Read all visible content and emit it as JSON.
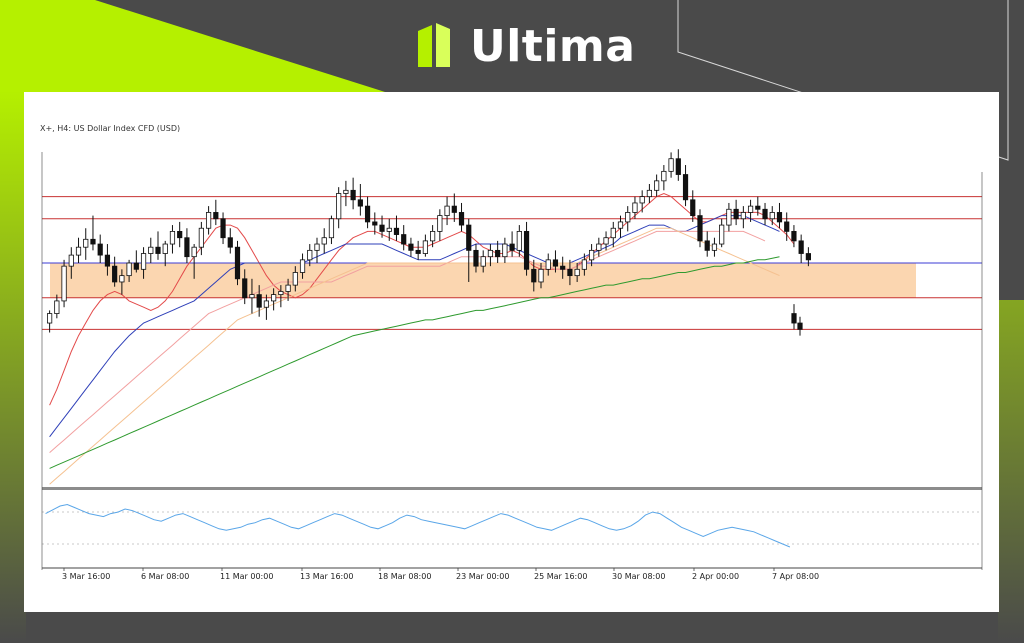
{
  "brand": {
    "name": "Ultima",
    "accent_color": "#b5f000",
    "background_color": "#4a4a4a"
  },
  "chart_data": {
    "type": "candlestick",
    "title": "X+, H4:  US Dollar Index CFD (USD)",
    "x_tick_labels": [
      "3 Mar 16:00",
      "6 Mar 08:00",
      "11 Mar 00:00",
      "13 Mar 16:00",
      "18 Mar 08:00",
      "23 Mar 00:00",
      "25 Mar 16:00",
      "30 Mar 08:00",
      "2 Apr 00:00",
      "7 Apr 08:00"
    ],
    "ylim": [
      0,
      100
    ],
    "candles": [
      {
        "o": 12,
        "h": 20,
        "l": 6,
        "c": 18
      },
      {
        "o": 18,
        "h": 30,
        "l": 15,
        "c": 26
      },
      {
        "o": 26,
        "h": 52,
        "l": 22,
        "c": 48
      },
      {
        "o": 48,
        "h": 60,
        "l": 40,
        "c": 55
      },
      {
        "o": 55,
        "h": 66,
        "l": 50,
        "c": 60
      },
      {
        "o": 60,
        "h": 72,
        "l": 52,
        "c": 65
      },
      {
        "o": 65,
        "h": 80,
        "l": 58,
        "c": 62
      },
      {
        "o": 62,
        "h": 68,
        "l": 50,
        "c": 55
      },
      {
        "o": 55,
        "h": 62,
        "l": 42,
        "c": 48
      },
      {
        "o": 48,
        "h": 54,
        "l": 35,
        "c": 38
      },
      {
        "o": 38,
        "h": 46,
        "l": 30,
        "c": 42
      },
      {
        "o": 42,
        "h": 52,
        "l": 38,
        "c": 50
      },
      {
        "o": 50,
        "h": 58,
        "l": 44,
        "c": 46
      },
      {
        "o": 46,
        "h": 60,
        "l": 40,
        "c": 56
      },
      {
        "o": 56,
        "h": 66,
        "l": 50,
        "c": 60
      },
      {
        "o": 60,
        "h": 70,
        "l": 52,
        "c": 56
      },
      {
        "o": 56,
        "h": 64,
        "l": 48,
        "c": 62
      },
      {
        "o": 62,
        "h": 74,
        "l": 56,
        "c": 70
      },
      {
        "o": 70,
        "h": 76,
        "l": 60,
        "c": 66
      },
      {
        "o": 66,
        "h": 72,
        "l": 50,
        "c": 54
      },
      {
        "o": 54,
        "h": 62,
        "l": 40,
        "c": 60
      },
      {
        "o": 60,
        "h": 76,
        "l": 55,
        "c": 72
      },
      {
        "o": 72,
        "h": 86,
        "l": 68,
        "c": 82
      },
      {
        "o": 82,
        "h": 90,
        "l": 74,
        "c": 78
      },
      {
        "o": 78,
        "h": 82,
        "l": 62,
        "c": 66
      },
      {
        "o": 66,
        "h": 72,
        "l": 56,
        "c": 60
      },
      {
        "o": 60,
        "h": 64,
        "l": 36,
        "c": 40
      },
      {
        "o": 40,
        "h": 46,
        "l": 24,
        "c": 28
      },
      {
        "o": 28,
        "h": 40,
        "l": 18,
        "c": 30
      },
      {
        "o": 30,
        "h": 36,
        "l": 16,
        "c": 22
      },
      {
        "o": 22,
        "h": 30,
        "l": 14,
        "c": 26
      },
      {
        "o": 26,
        "h": 34,
        "l": 20,
        "c": 30
      },
      {
        "o": 30,
        "h": 36,
        "l": 22,
        "c": 32
      },
      {
        "o": 32,
        "h": 40,
        "l": 26,
        "c": 36
      },
      {
        "o": 36,
        "h": 48,
        "l": 32,
        "c": 44
      },
      {
        "o": 44,
        "h": 56,
        "l": 40,
        "c": 52
      },
      {
        "o": 52,
        "h": 62,
        "l": 48,
        "c": 58
      },
      {
        "o": 58,
        "h": 66,
        "l": 50,
        "c": 62
      },
      {
        "o": 62,
        "h": 72,
        "l": 56,
        "c": 66
      },
      {
        "o": 66,
        "h": 80,
        "l": 62,
        "c": 78
      },
      {
        "o": 78,
        "h": 98,
        "l": 72,
        "c": 94
      },
      {
        "o": 94,
        "h": 102,
        "l": 86,
        "c": 96
      },
      {
        "o": 96,
        "h": 104,
        "l": 84,
        "c": 90
      },
      {
        "o": 90,
        "h": 100,
        "l": 80,
        "c": 86
      },
      {
        "o": 86,
        "h": 92,
        "l": 72,
        "c": 76
      },
      {
        "o": 76,
        "h": 82,
        "l": 68,
        "c": 74
      },
      {
        "o": 74,
        "h": 80,
        "l": 66,
        "c": 70
      },
      {
        "o": 70,
        "h": 78,
        "l": 64,
        "c": 72
      },
      {
        "o": 72,
        "h": 80,
        "l": 64,
        "c": 68
      },
      {
        "o": 68,
        "h": 74,
        "l": 58,
        "c": 62
      },
      {
        "o": 62,
        "h": 66,
        "l": 54,
        "c": 58
      },
      {
        "o": 58,
        "h": 64,
        "l": 52,
        "c": 56
      },
      {
        "o": 56,
        "h": 68,
        "l": 54,
        "c": 64
      },
      {
        "o": 64,
        "h": 74,
        "l": 60,
        "c": 70
      },
      {
        "o": 70,
        "h": 84,
        "l": 64,
        "c": 80
      },
      {
        "o": 80,
        "h": 92,
        "l": 74,
        "c": 86
      },
      {
        "o": 86,
        "h": 94,
        "l": 76,
        "c": 82
      },
      {
        "o": 82,
        "h": 88,
        "l": 70,
        "c": 74
      },
      {
        "o": 74,
        "h": 78,
        "l": 38,
        "c": 58
      },
      {
        "o": 58,
        "h": 62,
        "l": 44,
        "c": 48
      },
      {
        "o": 48,
        "h": 58,
        "l": 44,
        "c": 54
      },
      {
        "o": 54,
        "h": 62,
        "l": 48,
        "c": 58
      },
      {
        "o": 58,
        "h": 64,
        "l": 50,
        "c": 54
      },
      {
        "o": 54,
        "h": 66,
        "l": 50,
        "c": 62
      },
      {
        "o": 62,
        "h": 70,
        "l": 54,
        "c": 58
      },
      {
        "o": 58,
        "h": 74,
        "l": 54,
        "c": 70
      },
      {
        "o": 70,
        "h": 76,
        "l": 42,
        "c": 46
      },
      {
        "o": 46,
        "h": 52,
        "l": 32,
        "c": 38
      },
      {
        "o": 38,
        "h": 50,
        "l": 34,
        "c": 46
      },
      {
        "o": 46,
        "h": 56,
        "l": 42,
        "c": 52
      },
      {
        "o": 52,
        "h": 58,
        "l": 44,
        "c": 48
      },
      {
        "o": 48,
        "h": 54,
        "l": 40,
        "c": 46
      },
      {
        "o": 46,
        "h": 52,
        "l": 36,
        "c": 42
      },
      {
        "o": 42,
        "h": 50,
        "l": 38,
        "c": 46
      },
      {
        "o": 46,
        "h": 56,
        "l": 42,
        "c": 52
      },
      {
        "o": 52,
        "h": 62,
        "l": 48,
        "c": 58
      },
      {
        "o": 58,
        "h": 66,
        "l": 54,
        "c": 62
      },
      {
        "o": 62,
        "h": 70,
        "l": 58,
        "c": 66
      },
      {
        "o": 66,
        "h": 76,
        "l": 60,
        "c": 72
      },
      {
        "o": 72,
        "h": 80,
        "l": 66,
        "c": 76
      },
      {
        "o": 76,
        "h": 86,
        "l": 70,
        "c": 82
      },
      {
        "o": 82,
        "h": 92,
        "l": 78,
        "c": 88
      },
      {
        "o": 88,
        "h": 96,
        "l": 82,
        "c": 92
      },
      {
        "o": 92,
        "h": 100,
        "l": 88,
        "c": 96
      },
      {
        "o": 96,
        "h": 106,
        "l": 92,
        "c": 102
      },
      {
        "o": 102,
        "h": 112,
        "l": 96,
        "c": 108
      },
      {
        "o": 108,
        "h": 120,
        "l": 104,
        "c": 116
      },
      {
        "o": 116,
        "h": 122,
        "l": 102,
        "c": 106
      },
      {
        "o": 106,
        "h": 112,
        "l": 86,
        "c": 90
      },
      {
        "o": 90,
        "h": 96,
        "l": 76,
        "c": 80
      },
      {
        "o": 80,
        "h": 84,
        "l": 60,
        "c": 64
      },
      {
        "o": 64,
        "h": 70,
        "l": 54,
        "c": 58
      },
      {
        "o": 58,
        "h": 66,
        "l": 54,
        "c": 62
      },
      {
        "o": 62,
        "h": 78,
        "l": 60,
        "c": 74
      },
      {
        "o": 74,
        "h": 88,
        "l": 70,
        "c": 84
      },
      {
        "o": 84,
        "h": 90,
        "l": 74,
        "c": 78
      },
      {
        "o": 78,
        "h": 86,
        "l": 72,
        "c": 82
      },
      {
        "o": 82,
        "h": 90,
        "l": 76,
        "c": 86
      },
      {
        "o": 86,
        "h": 92,
        "l": 80,
        "c": 84
      },
      {
        "o": 84,
        "h": 88,
        "l": 74,
        "c": 78
      },
      {
        "o": 78,
        "h": 86,
        "l": 74,
        "c": 82
      },
      {
        "o": 82,
        "h": 88,
        "l": 72,
        "c": 76
      },
      {
        "o": 76,
        "h": 82,
        "l": 64,
        "c": 70
      },
      {
        "o": 70,
        "h": 74,
        "l": 60,
        "c": 64
      },
      {
        "o": 64,
        "h": 68,
        "l": 50,
        "c": 56
      },
      {
        "o": 56,
        "h": 60,
        "l": 48,
        "c": 52
      }
    ],
    "after_gap_candles": [
      {
        "o": 18,
        "h": 24,
        "l": 8,
        "c": 12
      },
      {
        "o": 12,
        "h": 16,
        "l": 4,
        "c": 8
      }
    ],
    "horizontal_levels": [
      {
        "value": 92,
        "color": "#c83232"
      },
      {
        "value": 78,
        "color": "#c83232"
      },
      {
        "value": 50,
        "color": "#3b3bd6"
      },
      {
        "value": 28,
        "color": "#c83232"
      },
      {
        "value": 8,
        "color": "#c83232"
      }
    ],
    "zone": {
      "from": 28,
      "to": 50,
      "color": "#fbd6b0"
    },
    "moving_averages": [
      {
        "color": "#e34a4a",
        "values": [
          -40,
          -30,
          -18,
          -6,
          4,
          12,
          20,
          26,
          30,
          32,
          30,
          26,
          24,
          22,
          20,
          22,
          26,
          32,
          40,
          48,
          54,
          60,
          66,
          72,
          74,
          74,
          72,
          66,
          58,
          50,
          42,
          36,
          32,
          30,
          28,
          30,
          34,
          40,
          46,
          52,
          58,
          62,
          66,
          68,
          70,
          70,
          68,
          66,
          64,
          62,
          60,
          60,
          60,
          62,
          64,
          66,
          68,
          70,
          68,
          64,
          60,
          58,
          56,
          56,
          58,
          56,
          52,
          48,
          46,
          46,
          46,
          46,
          46,
          48,
          52,
          56,
          60,
          64,
          68,
          72,
          76,
          80,
          84,
          88,
          92,
          94,
          92,
          88,
          84,
          80,
          76,
          76,
          78,
          80,
          82,
          82,
          82,
          82,
          82,
          80,
          76,
          72,
          68,
          62
        ]
      },
      {
        "color": "#2e3fb8",
        "values": [
          -60,
          -54,
          -48,
          -42,
          -36,
          -30,
          -24,
          -18,
          -12,
          -6,
          -1,
          4,
          8,
          12,
          14,
          16,
          18,
          20,
          22,
          24,
          26,
          30,
          34,
          38,
          42,
          46,
          48,
          50,
          50,
          50,
          50,
          50,
          50,
          50,
          50,
          50,
          52,
          54,
          56,
          58,
          60,
          62,
          62,
          62,
          62,
          62,
          62,
          60,
          58,
          56,
          54,
          52,
          52,
          52,
          52,
          54,
          56,
          58,
          60,
          62,
          62,
          62,
          62,
          62,
          60,
          58,
          56,
          54,
          52,
          50,
          50,
          50,
          50,
          52,
          54,
          56,
          58,
          60,
          62,
          66,
          68,
          70,
          72,
          74,
          74,
          74,
          72,
          70,
          70,
          72,
          74,
          76,
          78,
          80,
          80,
          80,
          80,
          78,
          76,
          74,
          72,
          70
        ]
      },
      {
        "color": "#f2a0a0",
        "values": [
          -70,
          -66,
          -62,
          -58,
          -54,
          -50,
          -46,
          -42,
          -38,
          -34,
          -30,
          -26,
          -22,
          -18,
          -14,
          -10,
          -6,
          -2,
          2,
          6,
          10,
          14,
          18,
          20,
          22,
          24,
          26,
          28,
          30,
          32,
          34,
          36,
          38,
          38,
          38,
          38,
          38,
          38,
          38,
          38,
          40,
          42,
          44,
          46,
          48,
          48,
          48,
          48,
          48,
          48,
          48,
          48,
          48,
          48,
          48,
          50,
          52,
          54,
          54,
          54,
          54,
          54,
          54,
          54,
          54,
          54,
          52,
          50,
          48,
          48,
          46,
          46,
          46,
          48,
          50,
          52,
          54,
          56,
          58,
          60,
          62,
          64,
          66,
          68,
          70,
          70,
          70,
          70,
          70,
          70,
          70,
          70,
          70,
          70,
          70,
          70,
          70,
          68,
          66,
          64
        ]
      },
      {
        "color": "#f5c190",
        "values": [
          -90,
          -86,
          -82,
          -78,
          -74,
          -70,
          -66,
          -62,
          -58,
          -54,
          -50,
          -46,
          -42,
          -38,
          -34,
          -30,
          -26,
          -22,
          -18,
          -14,
          -10,
          -6,
          -2,
          2,
          6,
          10,
          14,
          16,
          18,
          20,
          22,
          24,
          26,
          28,
          30,
          32,
          34,
          36,
          38,
          40,
          42,
          44,
          46,
          48,
          50,
          50,
          50,
          50,
          50,
          50,
          50,
          50,
          50,
          50,
          50,
          50,
          50,
          50,
          50,
          50,
          50,
          50,
          50,
          50,
          50,
          50,
          50,
          50,
          50,
          50,
          50,
          50,
          50,
          50,
          52,
          54,
          56,
          58,
          60,
          62,
          64,
          66,
          68,
          70,
          72,
          72,
          72,
          70,
          68,
          66,
          64,
          62,
          60,
          58,
          56,
          54,
          52,
          50,
          48,
          46,
          44,
          42
        ]
      },
      {
        "color": "#2e9a2e",
        "values": [
          -80,
          -78,
          -76,
          -74,
          -72,
          -70,
          -68,
          -66,
          -64,
          -62,
          -60,
          -58,
          -56,
          -54,
          -52,
          -50,
          -48,
          -46,
          -44,
          -42,
          -40,
          -38,
          -36,
          -34,
          -32,
          -30,
          -28,
          -26,
          -24,
          -22,
          -20,
          -18,
          -16,
          -14,
          -12,
          -10,
          -8,
          -6,
          -4,
          -2,
          0,
          2,
          4,
          5,
          6,
          7,
          8,
          9,
          10,
          11,
          12,
          13,
          14,
          14,
          15,
          16,
          17,
          18,
          19,
          20,
          20,
          21,
          22,
          23,
          24,
          25,
          26,
          27,
          28,
          28,
          29,
          30,
          31,
          32,
          33,
          34,
          35,
          36,
          36,
          37,
          38,
          39,
          40,
          40,
          41,
          42,
          43,
          44,
          44,
          45,
          46,
          47,
          48,
          48,
          49,
          50,
          50,
          51,
          52,
          52,
          53,
          54
        ]
      }
    ],
    "oscillator": {
      "color": "#5aa6e8",
      "values": [
        50,
        55,
        60,
        62,
        58,
        54,
        50,
        48,
        46,
        50,
        52,
        56,
        54,
        50,
        46,
        42,
        40,
        44,
        48,
        50,
        46,
        42,
        38,
        34,
        30,
        28,
        30,
        32,
        36,
        38,
        42,
        44,
        40,
        36,
        32,
        30,
        34,
        38,
        42,
        46,
        50,
        48,
        44,
        40,
        36,
        32,
        30,
        34,
        38,
        44,
        48,
        46,
        42,
        40,
        38,
        36,
        34,
        32,
        30,
        34,
        38,
        42,
        46,
        50,
        48,
        44,
        40,
        36,
        32,
        30,
        28,
        32,
        36,
        40,
        44,
        42,
        38,
        34,
        30,
        28,
        30,
        34,
        40,
        48,
        52,
        50,
        44,
        38,
        32,
        28,
        24,
        20,
        24,
        28,
        30,
        32,
        30,
        28,
        26,
        22,
        18,
        14,
        10,
        6
      ]
    }
  }
}
